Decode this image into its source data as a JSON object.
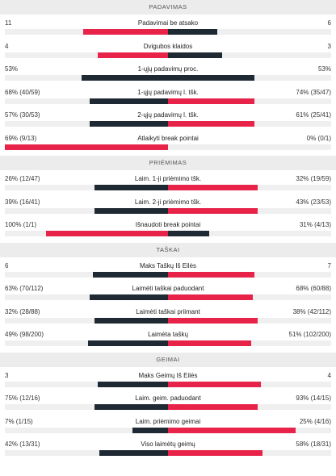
{
  "colors": {
    "red": "#e8234a",
    "dark": "#1f2933"
  },
  "sections": [
    {
      "title": "PADAVIMAS",
      "rows": [
        {
          "left": "11",
          "label": "Padavimai be atsako",
          "right": "6",
          "lf": 0.52,
          "rf": 0.3,
          "lc": "red",
          "rc": "dark"
        },
        {
          "left": "4",
          "label": "Dvigubos klaidos",
          "right": "3",
          "lf": 0.43,
          "rf": 0.33,
          "lc": "red",
          "rc": "dark"
        },
        {
          "left": "53%",
          "label": "1-ųjų padavimų proc.",
          "right": "53%",
          "lf": 0.53,
          "rf": 0.53,
          "lc": "dark",
          "rc": "dark"
        },
        {
          "left": "68% (40/59)",
          "label": "1-ųjų padavimų l. tšk.",
          "right": "74% (35/47)",
          "lf": 0.48,
          "rf": 0.53,
          "lc": "dark",
          "rc": "red"
        },
        {
          "left": "57% (30/53)",
          "label": "2-ųjų padavimų l. tšk.",
          "right": "61% (25/41)",
          "lf": 0.48,
          "rf": 0.53,
          "lc": "dark",
          "rc": "red"
        },
        {
          "left": "69% (9/13)",
          "label": "Atlaikyti break pointai",
          "right": "0% (0/1)",
          "lf": 1.0,
          "rf": 0.0,
          "lc": "red",
          "rc": "dark"
        }
      ]
    },
    {
      "title": "PRIĖMIMAS",
      "rows": [
        {
          "left": "26% (12/47)",
          "label": "Laim. 1-ji priėmimo tšk.",
          "right": "32% (19/59)",
          "lf": 0.45,
          "rf": 0.55,
          "lc": "dark",
          "rc": "red"
        },
        {
          "left": "39% (16/41)",
          "label": "Laim. 2-ji priėmimo tšk.",
          "right": "43% (23/53)",
          "lf": 0.45,
          "rf": 0.55,
          "lc": "dark",
          "rc": "red"
        },
        {
          "left": "100% (1/1)",
          "label": "Išnaudoti break pointai",
          "right": "31% (4/13)",
          "lf": 0.75,
          "rf": 0.25,
          "lc": "red",
          "rc": "dark"
        }
      ]
    },
    {
      "title": "TAŠKAI",
      "rows": [
        {
          "left": "6",
          "label": "Maks Taškų Iš Eilės",
          "right": "7",
          "lf": 0.46,
          "rf": 0.53,
          "lc": "dark",
          "rc": "red"
        },
        {
          "left": "63% (70/112)",
          "label": "Laimėti taškai paduodant",
          "right": "68% (60/88)",
          "lf": 0.48,
          "rf": 0.52,
          "lc": "dark",
          "rc": "red"
        },
        {
          "left": "32% (28/88)",
          "label": "Laimėti taškai priimant",
          "right": "38% (42/112)",
          "lf": 0.45,
          "rf": 0.55,
          "lc": "dark",
          "rc": "red"
        },
        {
          "left": "49% (98/200)",
          "label": "Laimėta taškų",
          "right": "51% (102/200)",
          "lf": 0.49,
          "rf": 0.51,
          "lc": "dark",
          "rc": "red"
        }
      ]
    },
    {
      "title": "GEIMAI",
      "rows": [
        {
          "left": "3",
          "label": "Maks Geimų Iš Eilės",
          "right": "4",
          "lf": 0.43,
          "rf": 0.57,
          "lc": "dark",
          "rc": "red"
        },
        {
          "left": "75% (12/16)",
          "label": "Laim. geim. paduodant",
          "right": "93% (14/15)",
          "lf": 0.45,
          "rf": 0.55,
          "lc": "dark",
          "rc": "red"
        },
        {
          "left": "7% (1/15)",
          "label": "Laim. priėmimo geimai",
          "right": "25% (4/16)",
          "lf": 0.22,
          "rf": 0.78,
          "lc": "dark",
          "rc": "red"
        },
        {
          "left": "42% (13/31)",
          "label": "Viso laimėtų geimų",
          "right": "58% (18/31)",
          "lf": 0.42,
          "rf": 0.58,
          "lc": "dark",
          "rc": "red"
        }
      ]
    }
  ]
}
